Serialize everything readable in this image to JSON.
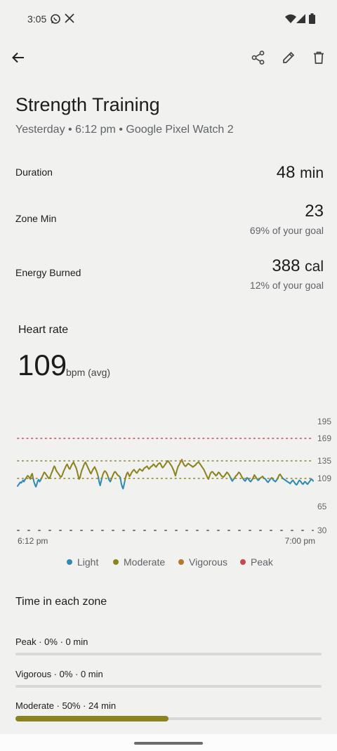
{
  "status_bar": {
    "time": "3:05"
  },
  "workout": {
    "title": "Strength Training",
    "subtitle": "Yesterday • 6:12 pm • Google Pixel Watch 2"
  },
  "stats": {
    "duration": {
      "label": "Duration",
      "value": "48",
      "unit": "min"
    },
    "zone_min": {
      "label": "Zone Min",
      "value": "23",
      "sub": "69% of your goal"
    },
    "energy": {
      "label": "Energy Burned",
      "value": "388",
      "unit": "cal",
      "sub": "12% of your goal"
    }
  },
  "heart_rate": {
    "title": "Heart rate",
    "avg": "109",
    "avg_unit": "bpm (avg)"
  },
  "chart_data": {
    "type": "line",
    "y_ticks": [
      "195",
      "169",
      "135",
      "109",
      "65",
      "30"
    ],
    "x_ticks": [
      "6:12 pm",
      "7:00 pm"
    ],
    "ylim": [
      30,
      195
    ],
    "zone_thresholds": [
      169,
      135,
      109
    ],
    "x_range_min": [
      0,
      48
    ],
    "series": [
      {
        "name": "Light",
        "color": "#2f8ab5"
      },
      {
        "name": "Moderate",
        "color": "#8b8320"
      },
      {
        "name": "Vigorous",
        "color": "#b7762c"
      },
      {
        "name": "Peak",
        "color": "#c8474d"
      }
    ],
    "hr_values": [
      97,
      99,
      101,
      103,
      102,
      104,
      106,
      104,
      107,
      109,
      111,
      113,
      112,
      110,
      108,
      114,
      116,
      109,
      103,
      99,
      96,
      100,
      105,
      107,
      104,
      106,
      109,
      112,
      115,
      118,
      117,
      115,
      113,
      111,
      109,
      110,
      113,
      117,
      120,
      124,
      127,
      125,
      121,
      119,
      117,
      115,
      113,
      111,
      112,
      115,
      119,
      122,
      125,
      128,
      130,
      127,
      124,
      123,
      126,
      129,
      131,
      133,
      130,
      127,
      124,
      119,
      113,
      108,
      110,
      116,
      121,
      124,
      128,
      131,
      133,
      130,
      127,
      124,
      121,
      118,
      116,
      119,
      122,
      124,
      126,
      123,
      120,
      116,
      111,
      103,
      98,
      104,
      110,
      115,
      118,
      120,
      119,
      117,
      114,
      110,
      106,
      104,
      107,
      111,
      114,
      117,
      119,
      118,
      116,
      114,
      113,
      112,
      110,
      101,
      96,
      93,
      99,
      106,
      112,
      116,
      118,
      115,
      112,
      114,
      117,
      119,
      121,
      122,
      120,
      118,
      117,
      119,
      121,
      123,
      122,
      121,
      120,
      122,
      124,
      125,
      126,
      127,
      125,
      123,
      124,
      126,
      127,
      128,
      130,
      129,
      127,
      126,
      128,
      130,
      131,
      132,
      130,
      127,
      125,
      126,
      128,
      130,
      132,
      134,
      135,
      133,
      131,
      129,
      127,
      124,
      121,
      117,
      113,
      118,
      123,
      127,
      129,
      132,
      134,
      137,
      133,
      130,
      128,
      127,
      128,
      130,
      131,
      130,
      129,
      128,
      127,
      126,
      127,
      128,
      129,
      131,
      132,
      133,
      132,
      130,
      128,
      126,
      124,
      122,
      119,
      116,
      113,
      110,
      108,
      112,
      116,
      118,
      119,
      118,
      116,
      115,
      113,
      114,
      116,
      118,
      117,
      115,
      113,
      112,
      111,
      112,
      114,
      116,
      118,
      117,
      115,
      113,
      110,
      107,
      105,
      107,
      109,
      111,
      113,
      114,
      116,
      118,
      117,
      115,
      112,
      110,
      108,
      106,
      105,
      107,
      110,
      109,
      107,
      105,
      104,
      106,
      108,
      111,
      114,
      112,
      110,
      108,
      106,
      107,
      109,
      110,
      111,
      112,
      110,
      109,
      108,
      106,
      104,
      103,
      105,
      107,
      109,
      110,
      108,
      106,
      105,
      104,
      106,
      108,
      111,
      114,
      115,
      113,
      111,
      109,
      108,
      107,
      106,
      105,
      104,
      103,
      102,
      101,
      103,
      105,
      106,
      104,
      102,
      100,
      99,
      101,
      104,
      106,
      105,
      103,
      101,
      100,
      102,
      104,
      103,
      101,
      100,
      102,
      104,
      106,
      108,
      107,
      105
    ]
  },
  "legend": [
    "Light",
    "Moderate",
    "Vigorous",
    "Peak"
  ],
  "zones": {
    "title": "Time in each zone",
    "items": [
      {
        "label": "Peak · 0% · 0 min",
        "fraction": 0,
        "color": "#c8474d"
      },
      {
        "label": "Vigorous · 0% · 0 min",
        "fraction": 0,
        "color": "#b7762c"
      },
      {
        "label": "Moderate · 50% · 24 min",
        "fraction": 0.5,
        "color": "#8b8320"
      }
    ]
  },
  "icons": {
    "back": "arrow-left-icon",
    "share": "share-icon",
    "edit": "pencil-icon",
    "delete": "trash-icon",
    "whatsapp": "whatsapp-icon",
    "x": "x-logo-icon",
    "wifi": "wifi-icon",
    "signal": "signal-icon",
    "battery": "battery-icon"
  }
}
